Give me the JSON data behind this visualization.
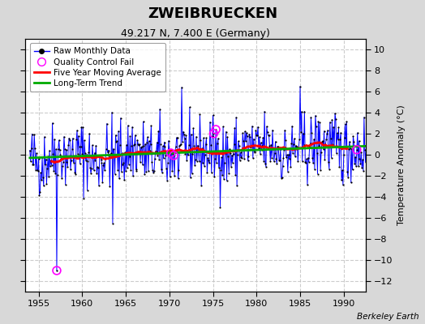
{
  "title": "ZWEIBRUECKEN",
  "subtitle": "49.217 N, 7.400 E (Germany)",
  "ylabel": "Temperature Anomaly (°C)",
  "attribution": "Berkeley Earth",
  "xlim": [
    1953.5,
    1992.5
  ],
  "ylim": [
    -13,
    11
  ],
  "yticks": [
    -12,
    -10,
    -8,
    -6,
    -4,
    -2,
    0,
    2,
    4,
    6,
    8,
    10
  ],
  "xticks": [
    1955,
    1960,
    1965,
    1970,
    1975,
    1980,
    1985,
    1990
  ],
  "bg_color": "#d8d8d8",
  "plot_bg_color": "#ffffff",
  "grid_color": "#c0c0c0",
  "raw_color": "#0000ff",
  "ma_color": "#ff0000",
  "trend_color": "#00aa00",
  "qc_color": "#ff00ff",
  "seed": 42,
  "start_year": 1954,
  "end_year": 1992
}
